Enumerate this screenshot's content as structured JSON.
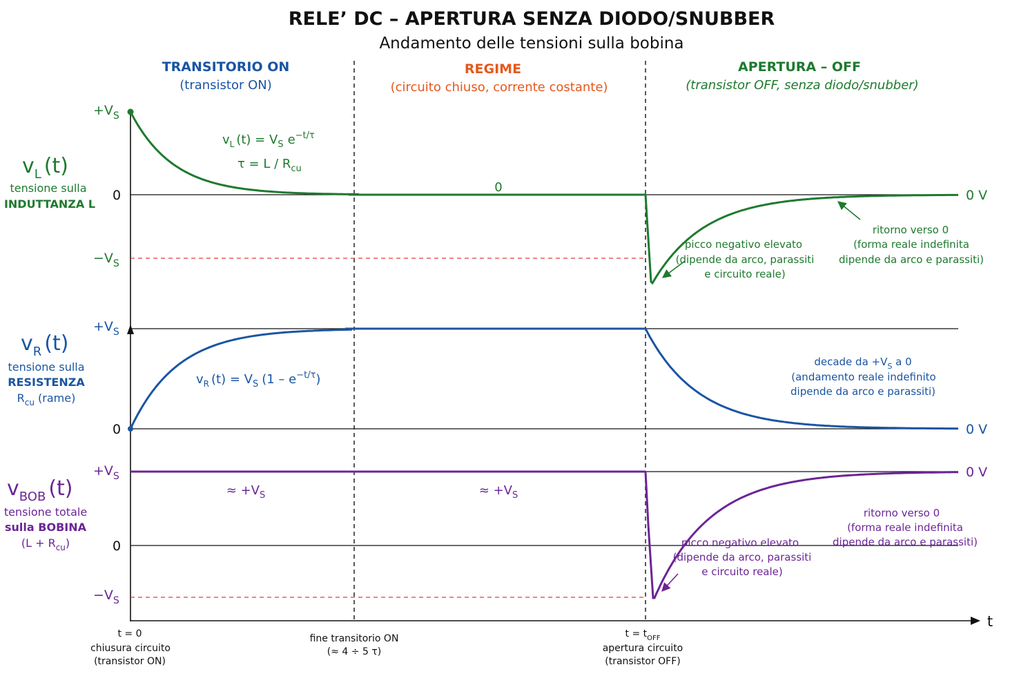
{
  "title": "RELE’ DC – APERTURA SENZA DIODO/SNUBBER",
  "subtitle": "Andamento delle tensioni sulla bobina",
  "colors": {
    "vl": "#1e7a2e",
    "vr": "#1a55a3",
    "vbob": "#6b2596",
    "regime": "#e4581d",
    "dashed_red": "#e23a3a",
    "axis": "#111111"
  },
  "phases": {
    "on": {
      "title": "TRANSITORIO ON",
      "subtitle": "(transistor ON)"
    },
    "regime": {
      "title": "REGIME",
      "subtitle": "(circuito chiuso, corrente costante)"
    },
    "off": {
      "title": "APERTURA – OFF",
      "subtitle": "(transistor OFF, senza diodo/snubber)"
    }
  },
  "panels": {
    "vl": {
      "name_main": "v",
      "name_sub": "L",
      "name_arg": "(t)",
      "desc": [
        "tensione sulla",
        "INDUTTANZA L"
      ],
      "tick_pos": "+V",
      "tick_pos_sub": "S",
      "tick_zero": "0",
      "tick_neg": "−V",
      "tick_neg_sub": "S",
      "formula_a": "v",
      "formula_a_sub": "L",
      "formula_a_mid": "(t) = V",
      "formula_a_sub2": "S",
      "formula_a_end": "e",
      "formula_a_sup": "−t/τ",
      "formula_b": "τ = L / R",
      "formula_b_sub": "cu",
      "zero_label": "0",
      "end_label": "0 V",
      "note_peak": [
        "picco negativo elevato",
        "(dipende da arco, parassiti",
        "e circuito reale)"
      ],
      "note_return": [
        "ritorno verso 0",
        "(forma reale indefinita",
        "dipende da arco e parassiti)"
      ]
    },
    "vr": {
      "name_main": "v",
      "name_sub": "R",
      "name_arg": "(t)",
      "desc": [
        "tensione sulla",
        "RESISTENZA"
      ],
      "desc3_main": "R",
      "desc3_sub": "cu",
      "desc3_end": " (rame)",
      "tick_pos": "+V",
      "tick_pos_sub": "S",
      "tick_zero": "0",
      "formula_a": "v",
      "formula_a_sub": "R",
      "formula_a_mid": "(t) = V",
      "formula_a_sub2": "S",
      "formula_a_end": "(1 – e",
      "formula_a_sup": "−t/τ",
      "formula_a_close": ")",
      "end_label": "0 V",
      "note_decay_1": "decade da +V",
      "note_decay_1_sub": "S",
      "note_decay_1_end": " a 0",
      "note_decay": [
        "(andamento reale indefinito",
        "dipende da arco e parassiti)"
      ]
    },
    "vbob": {
      "name_main": "v",
      "name_sub": "BOB",
      "name_arg": "(t)",
      "desc": [
        "tensione totale",
        "sulla BOBINA"
      ],
      "desc3_main": "(L + R",
      "desc3_sub": "cu",
      "desc3_end": ")",
      "tick_pos": "+V",
      "tick_pos_sub": "S",
      "tick_zero": "0",
      "tick_neg": "−V",
      "tick_neg_sub": "S",
      "approx": "≈ +V",
      "approx_sub": "S",
      "end_label": "0 V",
      "note_peak": [
        "picco negativo elevato",
        "(dipende da arco, parassiti",
        "e circuito reale)"
      ],
      "note_return": [
        "ritorno verso 0",
        "(forma reale indefinita",
        "dipende da arco e parassiti)"
      ]
    }
  },
  "time_axis": {
    "label": "t",
    "t0": [
      "t = 0",
      "chiusura circuito",
      "(transistor ON)"
    ],
    "t1": [
      "fine transitorio ON",
      "(≈ 4 ÷ 5 τ)"
    ],
    "t2_main": "t = t",
    "t2_sub": "OFF",
    "t2": [
      "apertura circuito",
      "(transistor OFF)"
    ]
  }
}
